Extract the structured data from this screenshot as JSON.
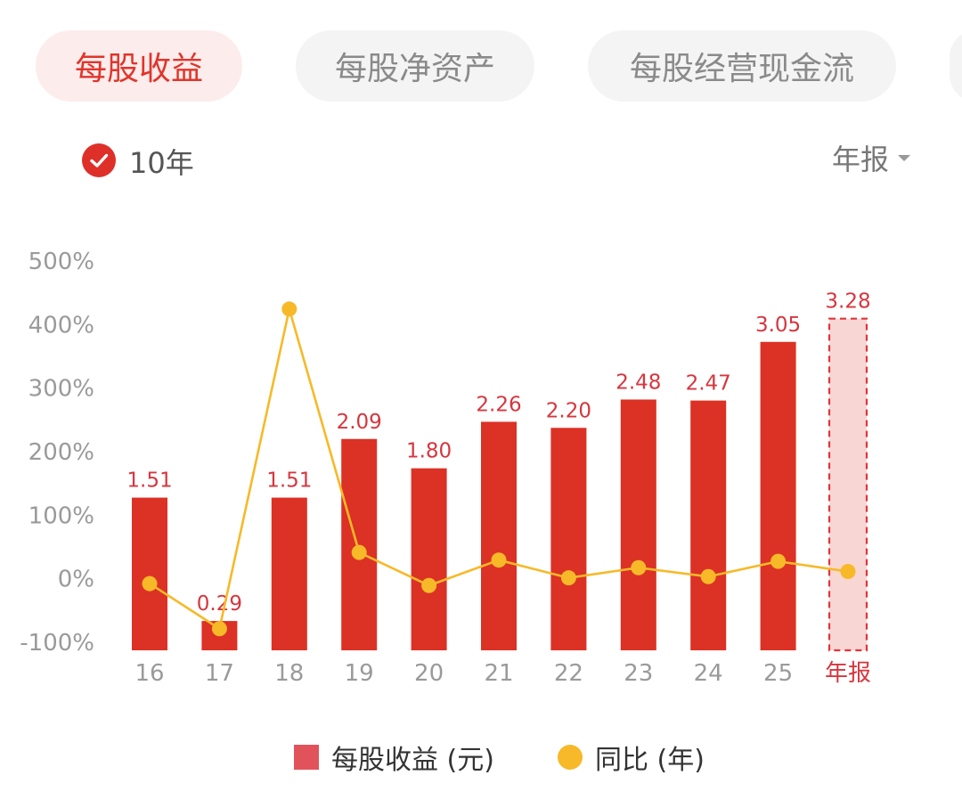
{
  "tabs": [
    {
      "label": "每股收益",
      "active": true
    },
    {
      "label": "每股净资产",
      "active": false
    },
    {
      "label": "每股经营现金流",
      "active": false
    }
  ],
  "filter": {
    "years_label": "10年",
    "years_checked": true,
    "period_label": "年报"
  },
  "colors": {
    "bar": "#dc3125",
    "bar_projection_fill": "#f8d6d3",
    "bar_projection_stroke": "#e0353c",
    "line": "#f7b928",
    "highlight_text": "#d7363e",
    "axis_text": "#9a9a9a"
  },
  "chart_data": {
    "type": "bar",
    "categories": [
      "16",
      "17",
      "18",
      "19",
      "20",
      "21",
      "22",
      "23",
      "24",
      "25",
      "年报"
    ],
    "series": [
      {
        "name": "每股收益 (元)",
        "type": "bar",
        "values": [
          1.51,
          0.29,
          1.51,
          2.09,
          1.8,
          2.26,
          2.2,
          2.48,
          2.47,
          3.05,
          3.28
        ],
        "labels": [
          "1.51",
          "0.29",
          "1.51",
          "2.09",
          "1.80",
          "2.26",
          "2.20",
          "2.48",
          "2.47",
          "3.05",
          "3.28"
        ],
        "projected_last": true
      },
      {
        "name": "同比 (年)",
        "type": "line",
        "values": [
          -9,
          -80,
          423,
          40,
          -12,
          28,
          0,
          16,
          2,
          26,
          10
        ]
      }
    ],
    "y_axis": {
      "ticks": [
        "500%",
        "400%",
        "300%",
        "200%",
        "100%",
        "0%",
        "-100%"
      ],
      "tick_values": [
        500,
        400,
        300,
        200,
        100,
        0,
        -100
      ],
      "range": [
        -100,
        500
      ]
    },
    "legend": {
      "position": "bottom",
      "items": [
        {
          "label": "每股收益 (元)",
          "marker": "square"
        },
        {
          "label": "同比 (年)",
          "marker": "circle"
        }
      ]
    }
  }
}
